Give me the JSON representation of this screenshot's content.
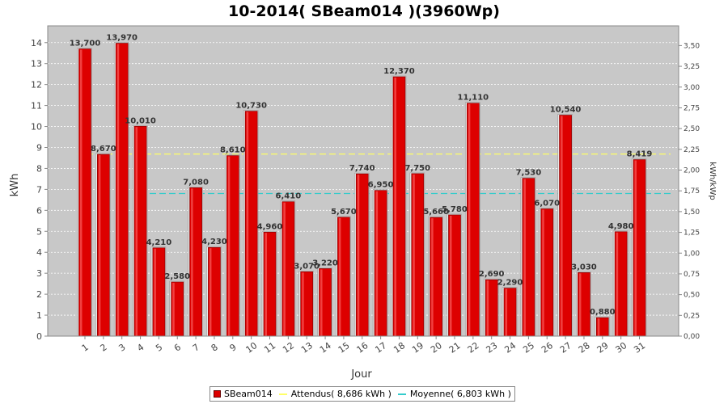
{
  "chart_data": {
    "type": "bar",
    "title": "10-2014( SBeam014 )(3960Wp)",
    "xlabel": "Jour",
    "ylabel": "kWh",
    "y2label": "kWh/kWp",
    "ylim": [
      0,
      14.8
    ],
    "y2lim": [
      0,
      3.7374
    ],
    "yticks": [
      0,
      1,
      2,
      3,
      4,
      5,
      6,
      7,
      8,
      9,
      10,
      11,
      12,
      13,
      14
    ],
    "y2ticks": [
      "0,00",
      "0,25",
      "0,50",
      "0,75",
      "1,00",
      "1,25",
      "1,50",
      "1,75",
      "2,00",
      "2,25",
      "2,50",
      "2,75",
      "3,00",
      "3,25",
      "3,50"
    ],
    "grid": true,
    "legend_position": "bottom",
    "categories": [
      "1",
      "2",
      "3",
      "4",
      "5",
      "6",
      "7",
      "8",
      "9",
      "10",
      "11",
      "12",
      "13",
      "14",
      "15",
      "16",
      "17",
      "18",
      "19",
      "20",
      "21",
      "22",
      "23",
      "24",
      "25",
      "26",
      "27",
      "28",
      "29",
      "30",
      "31"
    ],
    "series": [
      {
        "name": "SBeam014",
        "color": "#dd0000",
        "values": [
          13.7,
          8.67,
          13.97,
          10.01,
          4.21,
          2.58,
          7.08,
          4.23,
          8.61,
          10.73,
          4.96,
          6.41,
          3.07,
          3.22,
          5.67,
          7.74,
          6.95,
          12.37,
          7.75,
          5.66,
          5.78,
          11.11,
          2.69,
          2.29,
          7.53,
          6.07,
          10.54,
          3.03,
          0.88,
          4.98,
          8.419
        ],
        "labels": [
          "13,700",
          "8,670",
          "13,970",
          "10,010",
          "4,210",
          "2,580",
          "7,080",
          "4,230",
          "8,610",
          "10,730",
          "4,960",
          "6,410",
          "3,070",
          "3,220",
          "5,670",
          "7,740",
          "6,950",
          "12,370",
          "7,750",
          "5,660",
          "5,780",
          "11,110",
          "2,690",
          "2,290",
          "7,530",
          "6,070",
          "10,540",
          "3,030",
          "0,880",
          "4,980",
          "8,419"
        ]
      }
    ],
    "reference_lines": [
      {
        "name": "Attendus",
        "legend": "Attendus( 8,686 kWh )",
        "value": 8.686,
        "color": "#ffff66"
      },
      {
        "name": "Moyenne",
        "legend": "Moyenne( 6,803 kWh )",
        "value": 6.803,
        "color": "#33cccc"
      }
    ]
  }
}
